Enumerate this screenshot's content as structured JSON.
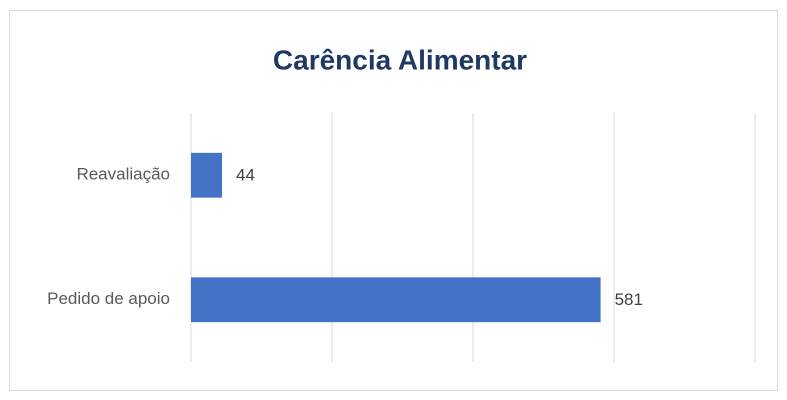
{
  "chart_data": {
    "type": "barh",
    "title": "Carência Alimentar",
    "categories": [
      "Reavaliação",
      "Pedido de apoio"
    ],
    "values": [
      44,
      581
    ],
    "color": "#4472c4",
    "xlim": [
      0,
      800
    ],
    "xticks": [
      0,
      200,
      400,
      600,
      800
    ],
    "grid": true
  }
}
